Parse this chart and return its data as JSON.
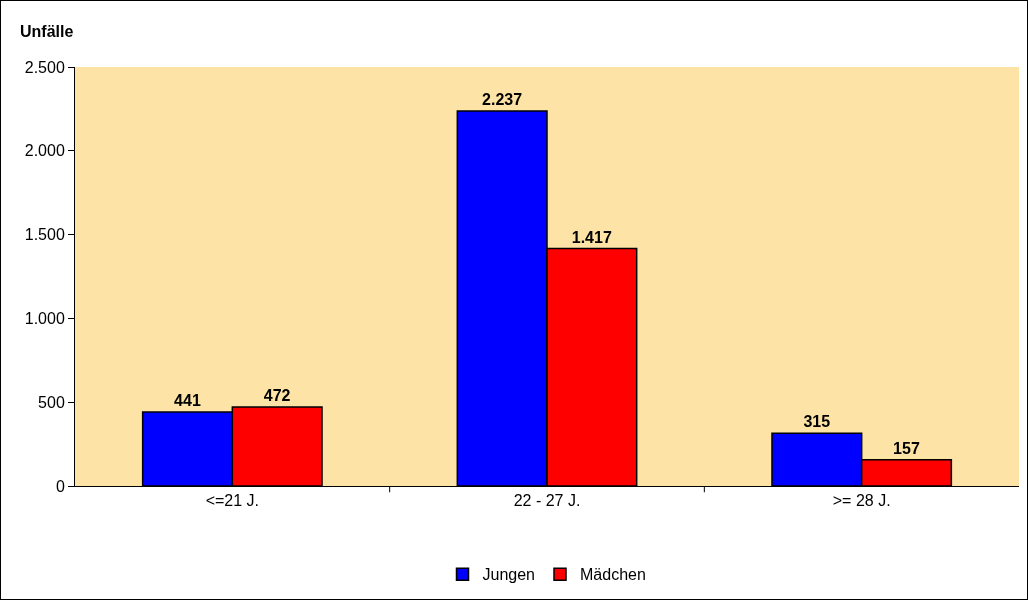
{
  "chart_data": {
    "type": "bar",
    "ylabel": "Unfälle",
    "categories": [
      "<=21 J.",
      "22 - 27 J.",
      ">= 28 J."
    ],
    "series": [
      {
        "name": "Jungen",
        "color": "#0000ff",
        "values": [
          441,
          2237,
          315
        ],
        "value_labels": [
          "441",
          "2.237",
          "315"
        ]
      },
      {
        "name": "Mädchen",
        "color": "#ff0000",
        "values": [
          472,
          1417,
          157
        ],
        "value_labels": [
          "472",
          "1.417",
          "157"
        ]
      }
    ],
    "ylim": [
      0,
      2500
    ],
    "yticks": [
      {
        "value": 0,
        "label": "0"
      },
      {
        "value": 500,
        "label": "500"
      },
      {
        "value": 1000,
        "label": "1.000"
      },
      {
        "value": 1500,
        "label": "1.500"
      },
      {
        "value": 2000,
        "label": "2.000"
      },
      {
        "value": 2500,
        "label": "2.500"
      }
    ],
    "grid": false,
    "legend": "bottom"
  }
}
